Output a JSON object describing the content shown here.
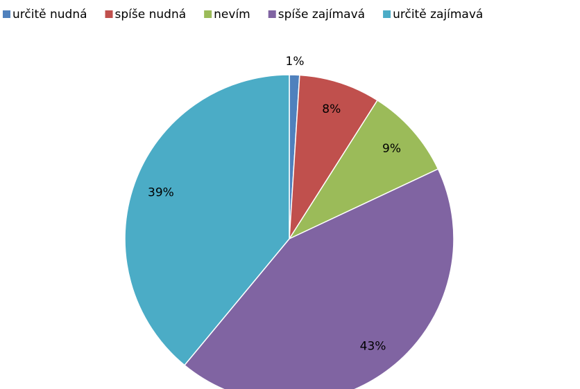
{
  "chart_data": {
    "type": "pie",
    "categories": [
      "určitě nudná",
      "spíše nudná",
      "nevím",
      "spíše zajímavá",
      "určitě zajímavá"
    ],
    "values": [
      1,
      8,
      9,
      43,
      39
    ],
    "value_labels": [
      "1%",
      "8%",
      "9%",
      "43%",
      "39%"
    ],
    "colors": [
      "#4f81bd",
      "#c0504d",
      "#9bbb59",
      "#8064a2",
      "#4bacc6"
    ],
    "legend": "top"
  }
}
